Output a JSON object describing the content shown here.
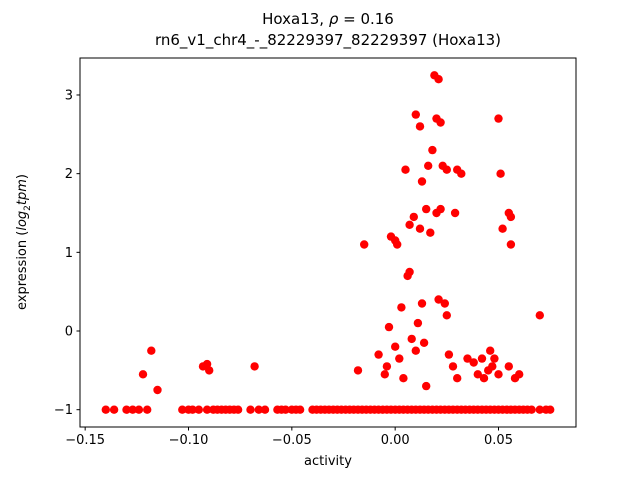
{
  "figure": {
    "title": {
      "pre": "Hoxa13, ",
      "rho": "ρ",
      "eq": " = 0.16"
    },
    "subtitle": "rn6_v1_chr4_-_82229397_82229397 (Hoxa13)",
    "xlabel": "activity",
    "ylabel": {
      "prefix": "expression (",
      "log": "log",
      "sub": "2",
      "var": "tpm",
      "suffix": ")"
    }
  },
  "chart_data": {
    "type": "scatter",
    "title": "Hoxa13, ρ = 0.16",
    "subtitle": "rn6_v1_chr4_-_82229397_82229397 (Hoxa13)",
    "xlabel": "activity",
    "ylabel": "expression (log2 tpm)",
    "legend": "none",
    "grid": false,
    "marker_color": "#ff0000",
    "marker_radius_px": 4.2,
    "xlim": [
      -0.1525,
      0.0875
    ],
    "ylim": [
      -1.22,
      3.47
    ],
    "xticks": {
      "values": [
        -0.15,
        -0.1,
        -0.05,
        0.0,
        0.05
      ],
      "labels": [
        "−0.15",
        "−0.10",
        "−0.05",
        "0.00",
        "0.05"
      ]
    },
    "yticks": {
      "values": [
        -1,
        0,
        1,
        2,
        3
      ],
      "labels": [
        "−1",
        "0",
        "1",
        "2",
        "3"
      ]
    },
    "points": [
      [
        -0.118,
        -0.25
      ],
      [
        -0.122,
        -0.55
      ],
      [
        -0.115,
        -0.75
      ],
      [
        -0.093,
        -0.45
      ],
      [
        -0.09,
        -0.5
      ],
      [
        -0.091,
        -0.42
      ],
      [
        -0.068,
        -0.45
      ],
      [
        -0.018,
        -0.5
      ],
      [
        -0.015,
        1.1
      ],
      [
        -0.008,
        -0.3
      ],
      [
        -0.005,
        -0.55
      ],
      [
        -0.004,
        -0.45
      ],
      [
        -0.002,
        1.2
      ],
      [
        0.0,
        1.15
      ],
      [
        0.001,
        1.1
      ],
      [
        -0.003,
        0.05
      ],
      [
        0.0,
        -0.2
      ],
      [
        0.002,
        -0.35
      ],
      [
        0.003,
        0.3
      ],
      [
        0.004,
        -0.6
      ],
      [
        0.005,
        2.05
      ],
      [
        0.006,
        0.7
      ],
      [
        0.007,
        0.75
      ],
      [
        0.007,
        1.35
      ],
      [
        0.008,
        -0.1
      ],
      [
        0.009,
        1.45
      ],
      [
        0.01,
        2.75
      ],
      [
        0.01,
        -0.25
      ],
      [
        0.011,
        0.1
      ],
      [
        0.012,
        2.6
      ],
      [
        0.012,
        1.3
      ],
      [
        0.013,
        1.9
      ],
      [
        0.013,
        0.35
      ],
      [
        0.014,
        -0.15
      ],
      [
        0.015,
        1.55
      ],
      [
        0.015,
        -0.7
      ],
      [
        0.016,
        2.1
      ],
      [
        0.017,
        1.25
      ],
      [
        0.018,
        2.3
      ],
      [
        0.019,
        3.25
      ],
      [
        0.021,
        3.2
      ],
      [
        0.02,
        2.7
      ],
      [
        0.02,
        1.5
      ],
      [
        0.021,
        0.4
      ],
      [
        0.022,
        2.65
      ],
      [
        0.022,
        1.55
      ],
      [
        0.023,
        2.1
      ],
      [
        0.024,
        0.35
      ],
      [
        0.025,
        2.05
      ],
      [
        0.025,
        0.2
      ],
      [
        0.026,
        -0.3
      ],
      [
        0.028,
        -0.45
      ],
      [
        0.029,
        1.5
      ],
      [
        0.03,
        -0.6
      ],
      [
        0.03,
        2.05
      ],
      [
        0.032,
        2.0
      ],
      [
        0.035,
        -0.35
      ],
      [
        0.038,
        -0.4
      ],
      [
        0.04,
        -0.55
      ],
      [
        0.042,
        -0.35
      ],
      [
        0.043,
        -0.6
      ],
      [
        0.045,
        -0.5
      ],
      [
        0.046,
        -0.25
      ],
      [
        0.047,
        -0.45
      ],
      [
        0.048,
        -0.35
      ],
      [
        0.05,
        -0.55
      ],
      [
        0.05,
        2.7
      ],
      [
        0.051,
        2.0
      ],
      [
        0.052,
        1.3
      ],
      [
        0.055,
        1.5
      ],
      [
        0.056,
        1.45
      ],
      [
        0.056,
        1.1
      ],
      [
        0.055,
        -0.45
      ],
      [
        0.058,
        -0.6
      ],
      [
        0.06,
        -0.55
      ],
      [
        0.07,
        0.2
      ],
      [
        -0.14,
        -1
      ],
      [
        -0.136,
        -1
      ],
      [
        -0.13,
        -1
      ],
      [
        -0.127,
        -1
      ],
      [
        -0.124,
        -1
      ],
      [
        -0.12,
        -1
      ],
      [
        -0.103,
        -1
      ],
      [
        -0.1,
        -1
      ],
      [
        -0.098,
        -1
      ],
      [
        -0.095,
        -1
      ],
      [
        -0.091,
        -1
      ],
      [
        -0.088,
        -1
      ],
      [
        -0.086,
        -1
      ],
      [
        -0.084,
        -1
      ],
      [
        -0.082,
        -1
      ],
      [
        -0.08,
        -1
      ],
      [
        -0.078,
        -1
      ],
      [
        -0.076,
        -1
      ],
      [
        -0.07,
        -1
      ],
      [
        -0.066,
        -1
      ],
      [
        -0.063,
        -1
      ],
      [
        -0.057,
        -1
      ],
      [
        -0.055,
        -1
      ],
      [
        -0.053,
        -1
      ],
      [
        -0.05,
        -1
      ],
      [
        -0.048,
        -1
      ],
      [
        -0.046,
        -1
      ],
      [
        -0.04,
        -1
      ],
      [
        -0.038,
        -1
      ],
      [
        -0.036,
        -1
      ],
      [
        -0.034,
        -1
      ],
      [
        -0.032,
        -1
      ],
      [
        -0.03,
        -1
      ],
      [
        -0.028,
        -1
      ],
      [
        -0.026,
        -1
      ],
      [
        -0.024,
        -1
      ],
      [
        -0.022,
        -1
      ],
      [
        -0.02,
        -1
      ],
      [
        -0.018,
        -1
      ],
      [
        -0.016,
        -1
      ],
      [
        -0.014,
        -1
      ],
      [
        -0.012,
        -1
      ],
      [
        -0.01,
        -1
      ],
      [
        -0.008,
        -1
      ],
      [
        -0.006,
        -1
      ],
      [
        -0.004,
        -1
      ],
      [
        -0.002,
        -1
      ],
      [
        0.0,
        -1
      ],
      [
        0.002,
        -1
      ],
      [
        0.004,
        -1
      ],
      [
        0.006,
        -1
      ],
      [
        0.008,
        -1
      ],
      [
        0.01,
        -1
      ],
      [
        0.012,
        -1
      ],
      [
        0.014,
        -1
      ],
      [
        0.016,
        -1
      ],
      [
        0.018,
        -1
      ],
      [
        0.02,
        -1
      ],
      [
        0.022,
        -1
      ],
      [
        0.024,
        -1
      ],
      [
        0.026,
        -1
      ],
      [
        0.028,
        -1
      ],
      [
        0.03,
        -1
      ],
      [
        0.032,
        -1
      ],
      [
        0.034,
        -1
      ],
      [
        0.036,
        -1
      ],
      [
        0.038,
        -1
      ],
      [
        0.04,
        -1
      ],
      [
        0.042,
        -1
      ],
      [
        0.044,
        -1
      ],
      [
        0.046,
        -1
      ],
      [
        0.048,
        -1
      ],
      [
        0.05,
        -1
      ],
      [
        0.052,
        -1
      ],
      [
        0.054,
        -1
      ],
      [
        0.056,
        -1
      ],
      [
        0.058,
        -1
      ],
      [
        0.06,
        -1
      ],
      [
        0.062,
        -1
      ],
      [
        0.064,
        -1
      ],
      [
        0.066,
        -1
      ],
      [
        0.07,
        -1
      ],
      [
        0.073,
        -1
      ],
      [
        0.075,
        -1
      ]
    ]
  }
}
